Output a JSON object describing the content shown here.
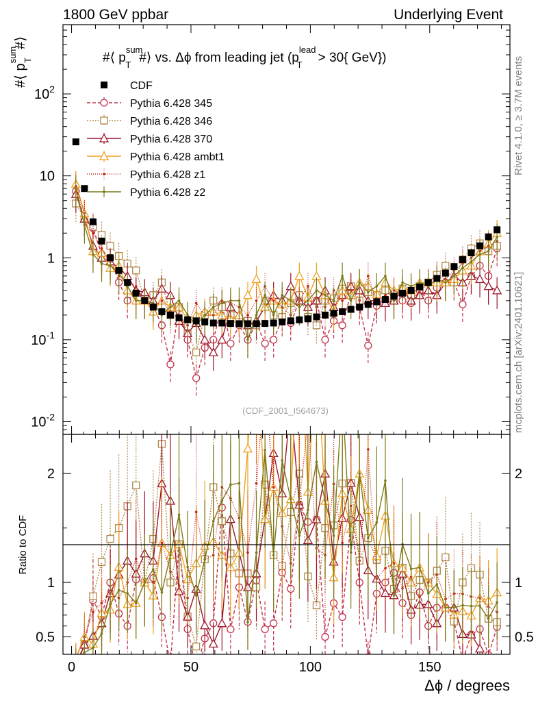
{
  "chart_data": {
    "type": "scatter",
    "header_left": "1800 GeV ppbar",
    "header_right": "Underlying Event",
    "title": "#⟨ p_T^sum #⟩ vs. Δϕ from leading jet  (p_T^lead > 30{ GeV})",
    "title_parts": {
      "a": "#⟨ p",
      "sup1": "sum",
      "sub1": "T",
      "b": "#⟩ vs. Δϕ from leading jet  (p",
      "sup2": "lead",
      "sub2": "T",
      "c": " > 30{ GeV})"
    },
    "ylabel": "#⟨ p_T^sum #⟩",
    "ylabel_parts": {
      "a": "#⟨ p",
      "sup": "sum",
      "sub": "T",
      "b": "#⟩"
    },
    "ratio_ylabel": "Ratio to CDF",
    "xlabel": "Δϕ / degrees",
    "side_label_top": "Rivet 4.1.0, ≥ 3.7M events",
    "side_label_bottom": "mcplots.cern.ch [arXiv:2401.10621]",
    "watermark": "(CDF_2001_I564673)",
    "xlim": [
      -3.6,
      183.6
    ],
    "ylim_log": [
      0.007,
      700
    ],
    "ratio_ylim": [
      0.34,
      2.36
    ],
    "y_ticks": [
      "10^-2",
      "10^-1",
      "1",
      "10",
      "10^2"
    ],
    "x_ticks": [
      "0",
      "50",
      "100",
      "150"
    ],
    "ratio_ticks": [
      "0.5",
      "1",
      "2"
    ],
    "x": [
      1.8,
      5.4,
      9.0,
      12.6,
      16.2,
      19.8,
      23.4,
      27.0,
      30.6,
      34.2,
      37.8,
      41.4,
      45.0,
      48.6,
      52.2,
      55.8,
      59.4,
      63.0,
      66.6,
      70.2,
      73.8,
      77.4,
      81.0,
      84.6,
      88.2,
      91.8,
      95.4,
      99.0,
      102.6,
      106.2,
      109.8,
      113.4,
      117.0,
      120.6,
      124.2,
      127.8,
      131.4,
      135.0,
      138.6,
      142.2,
      145.8,
      149.4,
      153.0,
      156.6,
      160.2,
      163.8,
      167.4,
      171.0,
      174.6,
      178.2
    ],
    "series": [
      {
        "name": "CDF",
        "marker": "square-filled",
        "color": "#000000",
        "dash": "",
        "values": [
          26,
          7.0,
          2.75,
          1.6,
          1.0,
          0.7,
          0.5,
          0.37,
          0.3,
          0.25,
          0.22,
          0.2,
          0.185,
          0.175,
          0.17,
          0.165,
          0.16,
          0.16,
          0.158,
          0.157,
          0.157,
          0.157,
          0.158,
          0.16,
          0.165,
          0.17,
          0.175,
          0.18,
          0.19,
          0.2,
          0.21,
          0.22,
          0.235,
          0.25,
          0.27,
          0.29,
          0.31,
          0.34,
          0.37,
          0.4,
          0.44,
          0.5,
          0.56,
          0.65,
          0.78,
          0.95,
          1.15,
          1.4,
          1.8,
          2.2
        ]
      },
      {
        "name": "Pythia 6.428 345",
        "marker": "circle-open",
        "color": "#c0304a",
        "dash": "5,3",
        "values": [
          6.5,
          3.0,
          2.3,
          1.1,
          1.0,
          0.5,
          0.3,
          0.38,
          0.3,
          0.26,
          0.15,
          0.05,
          0.25,
          0.1,
          0.034,
          0.08,
          0.1,
          0.27,
          0.09,
          0.15,
          0.1,
          0.16,
          0.09,
          0.1,
          0.18,
          0.16,
          0.3,
          0.28,
          0.3,
          0.1,
          0.17,
          0.15,
          0.37,
          0.25,
          0.085,
          0.26,
          0.31,
          0.37,
          0.3,
          0.28,
          0.4,
          0.3,
          0.43,
          0.5,
          0.5,
          0.27,
          0.6,
          0.8,
          0.6,
          1.3
        ]
      },
      {
        "name": "Pythia 6.428 346",
        "marker": "square-open",
        "color": "#b0884a",
        "dash": "2,2",
        "values": [
          4.6,
          3.0,
          2.4,
          1.9,
          1.4,
          1.05,
          0.85,
          0.7,
          0.3,
          0.35,
          0.5,
          0.2,
          0.25,
          0.12,
          0.07,
          0.2,
          0.3,
          0.25,
          0.2,
          0.17,
          0.17,
          0.15,
          0.3,
          0.2,
          0.19,
          0.28,
          0.35,
          0.19,
          0.15,
          0.3,
          0.32,
          0.42,
          0.45,
          0.3,
          0.38,
          0.35,
          0.4,
          0.32,
          0.42,
          0.35,
          0.45,
          0.5,
          0.62,
          0.8,
          0.5,
          0.95,
          1.3,
          1.5,
          1.2,
          1.4
        ]
      },
      {
        "name": "Pythia 6.428 370",
        "marker": "triangle-open",
        "color": "#9c1428",
        "dash": "",
        "values": [
          6.0,
          3.0,
          1.4,
          1.0,
          0.9,
          0.75,
          0.6,
          0.4,
          0.38,
          0.3,
          0.42,
          0.35,
          0.17,
          0.12,
          0.16,
          0.1,
          0.07,
          0.1,
          0.25,
          0.2,
          0.15,
          0.17,
          0.25,
          0.35,
          0.3,
          0.45,
          0.3,
          0.25,
          0.3,
          0.4,
          0.25,
          0.35,
          0.45,
          0.4,
          0.3,
          0.3,
          0.28,
          0.3,
          0.4,
          0.3,
          0.35,
          0.4,
          0.35,
          0.5,
          0.6,
          0.5,
          0.6,
          0.55,
          0.45,
          0.4
        ]
      },
      {
        "name": "Pythia 6.428 ambt1",
        "marker": "triangle-open",
        "color": "#f0a020",
        "dash": "",
        "values": [
          8.0,
          3.5,
          1.2,
          1.15,
          0.75,
          0.8,
          0.4,
          0.3,
          0.3,
          0.22,
          0.3,
          0.25,
          0.25,
          0.18,
          0.2,
          0.22,
          0.22,
          0.2,
          0.18,
          0.2,
          0.35,
          0.55,
          0.25,
          0.3,
          0.27,
          0.3,
          0.6,
          0.33,
          0.6,
          0.35,
          0.22,
          0.4,
          0.35,
          0.5,
          0.45,
          0.36,
          0.5,
          0.4,
          0.42,
          0.4,
          0.5,
          0.5,
          0.5,
          0.5,
          0.55,
          0.7,
          0.8,
          1.2,
          1.5,
          2.0
        ]
      },
      {
        "name": "Pythia 6.428 z1",
        "marker": "dot",
        "color": "#c81e14",
        "dash": "1,2",
        "values": [
          7.5,
          3.5,
          2.0,
          1.3,
          0.9,
          0.6,
          0.5,
          0.45,
          0.3,
          0.25,
          0.3,
          0.22,
          0.18,
          0.15,
          0.28,
          0.2,
          0.2,
          0.3,
          0.28,
          0.25,
          0.2,
          0.3,
          0.45,
          0.3,
          0.25,
          0.2,
          0.3,
          0.45,
          0.25,
          0.25,
          0.4,
          0.3,
          0.4,
          0.3,
          0.6,
          0.3,
          0.35,
          0.4,
          0.35,
          0.42,
          0.38,
          0.5,
          0.6,
          0.55,
          0.7,
          0.85,
          1.0,
          1.2,
          1.4,
          1.6
        ]
      },
      {
        "name": "Pythia 6.428 z2",
        "marker": "dot",
        "color": "#7a7a1a",
        "dash": "",
        "values": [
          7.0,
          2.5,
          1.1,
          0.85,
          0.8,
          0.65,
          0.45,
          0.3,
          0.3,
          0.28,
          0.2,
          0.25,
          0.3,
          0.2,
          0.15,
          0.2,
          0.25,
          0.28,
          0.3,
          0.3,
          0.1,
          0.2,
          0.35,
          0.2,
          0.35,
          0.3,
          0.25,
          0.3,
          0.4,
          0.35,
          0.3,
          0.6,
          0.3,
          0.5,
          0.38,
          0.45,
          0.6,
          0.3,
          0.5,
          0.45,
          0.5,
          0.45,
          0.55,
          0.5,
          0.6,
          0.75,
          0.9,
          1.1,
          1.2,
          1.8
        ]
      }
    ]
  }
}
